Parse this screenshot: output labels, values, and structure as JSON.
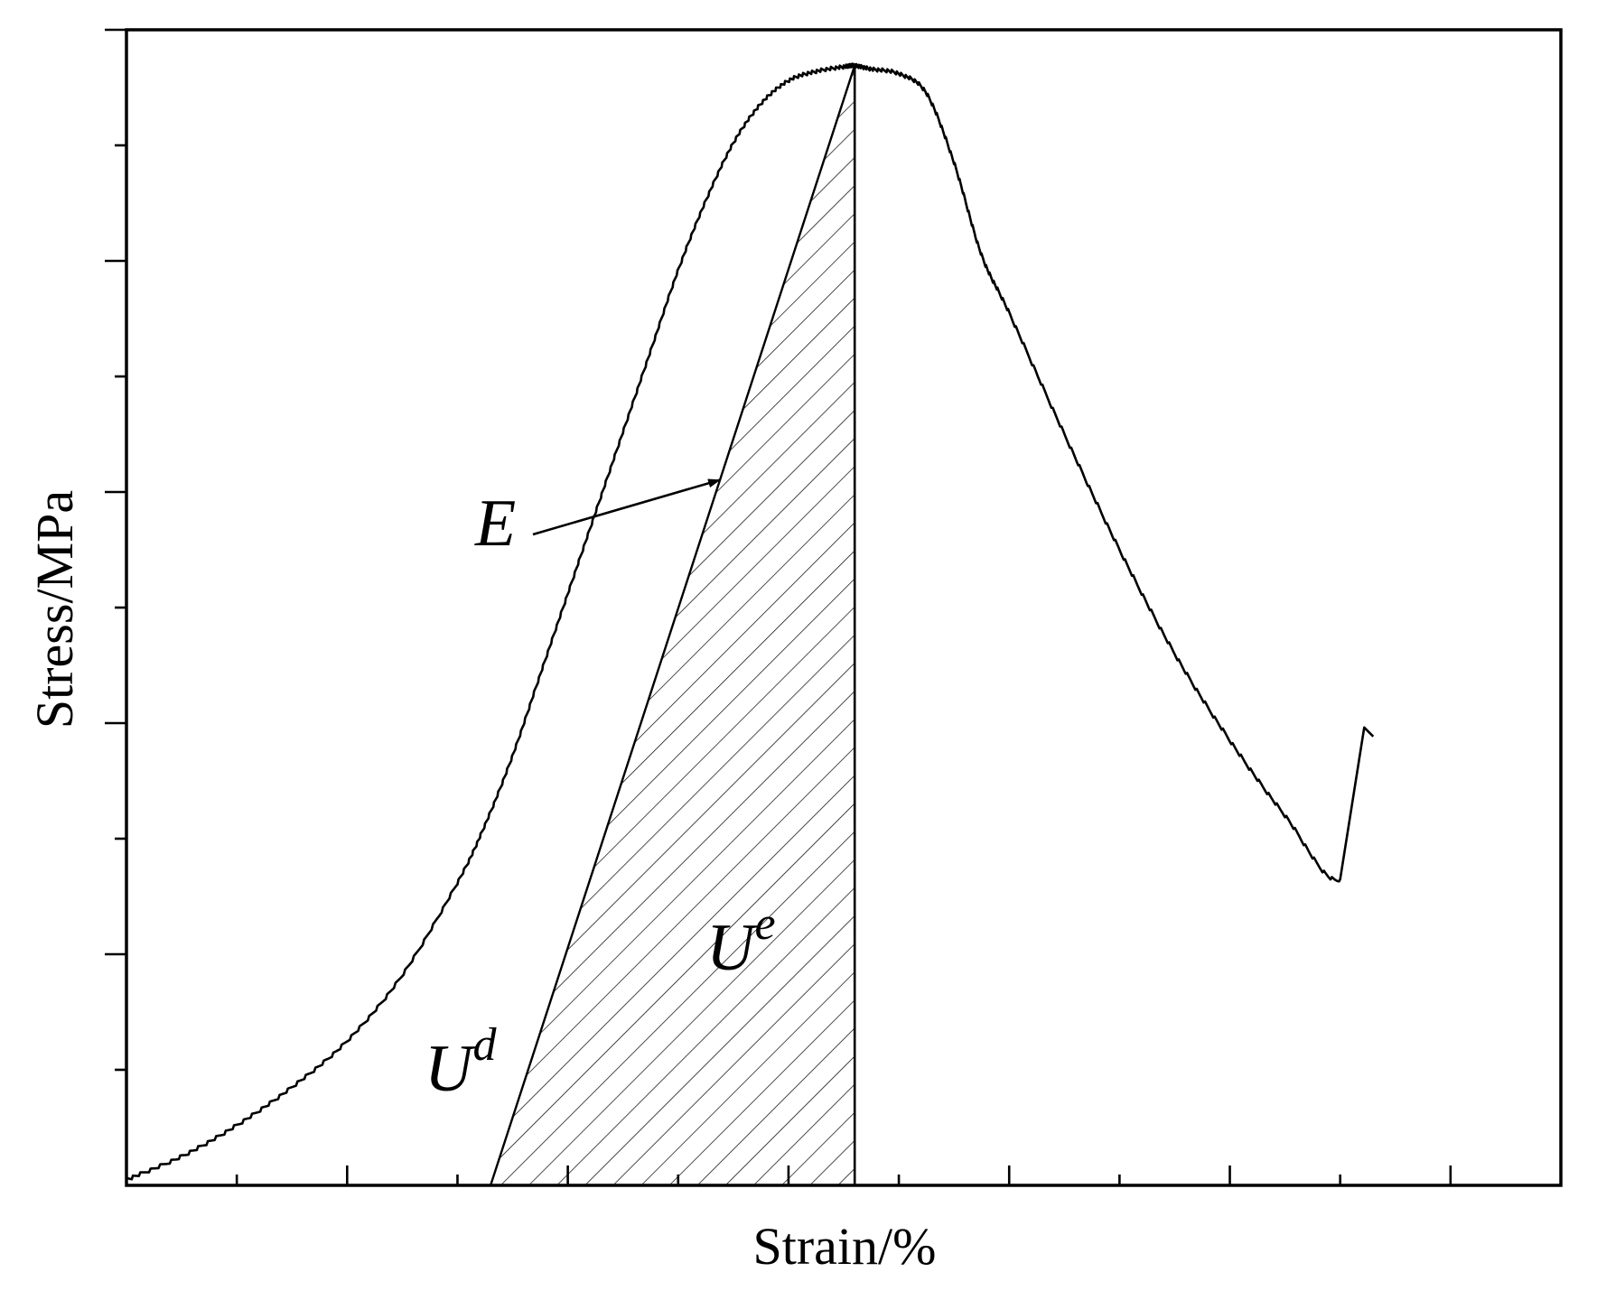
{
  "chart_data": {
    "type": "line",
    "title": "",
    "xlabel": "Strain/%",
    "ylabel": "Stress/MPa",
    "xlim": [
      0,
      13
    ],
    "ylim": [
      0,
      10
    ],
    "x_tick_labels_shown": false,
    "y_tick_labels_shown": false,
    "x_ticks": [
      1,
      2,
      3,
      4,
      5,
      6,
      7,
      8,
      9,
      10,
      11,
      12
    ],
    "y_ticks": [
      1,
      2,
      3,
      4,
      5,
      6,
      7,
      8,
      9,
      10
    ],
    "grid": false,
    "legend": "none",
    "series": [
      {
        "name": "",
        "x": [
          0,
          0.5,
          1.0,
          1.5,
          2.0,
          2.5,
          3.0,
          3.25,
          3.5,
          3.75,
          4.0,
          4.25,
          4.5,
          4.75,
          5.0,
          5.25,
          5.5,
          5.75,
          6.0,
          6.25,
          6.5,
          6.6,
          6.75,
          7.0,
          7.25,
          7.5,
          7.75,
          8.0,
          8.5,
          9.0,
          9.5,
          10.0,
          10.5,
          11.0,
          11.3
        ],
        "y": [
          0.05,
          0.25,
          0.52,
          0.85,
          1.25,
          1.82,
          2.62,
          3.12,
          3.72,
          4.42,
          5.12,
          5.82,
          6.52,
          7.22,
          7.92,
          8.52,
          9.02,
          9.36,
          9.56,
          9.64,
          9.68,
          9.69,
          9.66,
          9.62,
          9.45,
          8.85,
          8.05,
          7.55,
          6.5,
          5.5,
          4.6,
          3.85,
          3.2,
          2.65,
          3.65
        ]
      }
    ],
    "unloading_line": {
      "x": [
        3.3,
        6.6
      ],
      "y": [
        0,
        9.69
      ]
    },
    "peak_strain": 6.6,
    "annotations": {
      "E": "E",
      "Ud_base": "U",
      "Ud_sup": "d",
      "Ue_base": "U",
      "Ue_sup": "e"
    }
  }
}
